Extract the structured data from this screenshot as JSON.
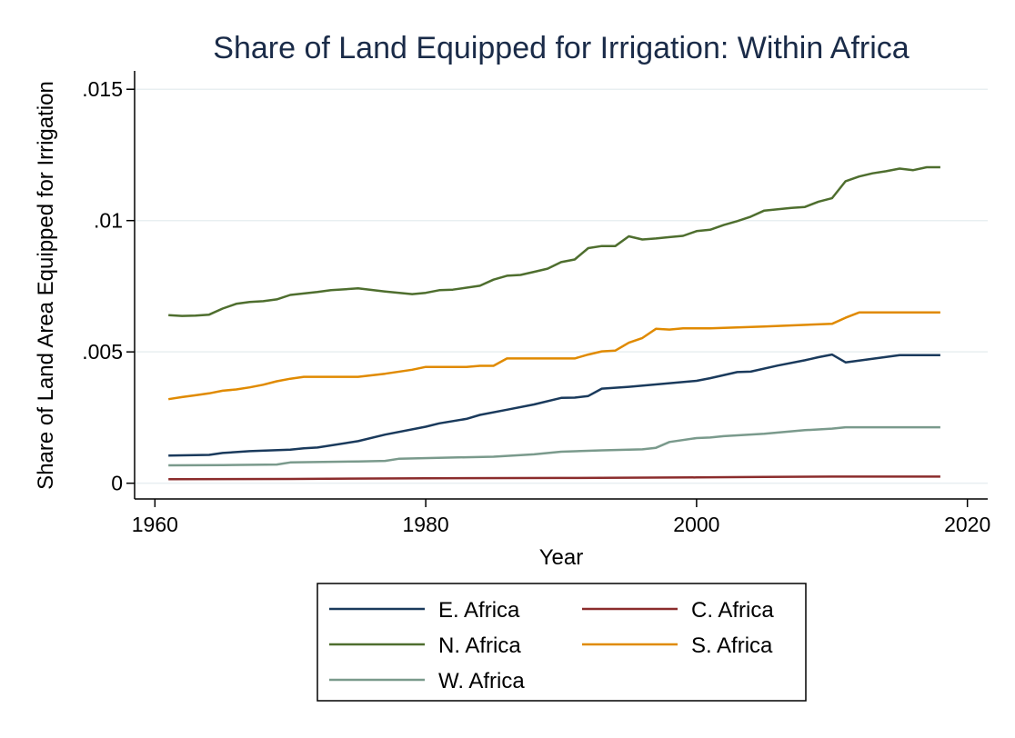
{
  "chart_data": {
    "type": "line",
    "title": "Share of Land Equipped for Irrigation: Within Africa",
    "xlabel": "Year",
    "ylabel": "Share of Land Area Equipped for Irrigation",
    "xlim": [
      1958.5,
      2021.5
    ],
    "ylim": [
      -0.0006,
      0.0157
    ],
    "xticks": [
      1960,
      1980,
      2000,
      2020
    ],
    "xtick_labels": [
      "1960",
      "1980",
      "2000",
      "2020"
    ],
    "yticks": [
      0,
      0.005,
      0.01,
      0.015
    ],
    "ytick_labels": [
      "0",
      ".005",
      ".01",
      ".015"
    ],
    "grid": true,
    "legend_position": "bottom",
    "series": [
      {
        "name": "E. Africa",
        "color": "#1a3a5c",
        "x": [
          1961,
          1964,
          1965,
          1967,
          1970,
          1971,
          1972,
          1975,
          1977,
          1980,
          1981,
          1983,
          1984,
          1986,
          1988,
          1990,
          1991,
          1992,
          1993,
          1995,
          2000,
          2001,
          2003,
          2004,
          2006,
          2008,
          2009,
          2010,
          2011,
          2015,
          2018
        ],
        "y": [
          0.00105,
          0.00108,
          0.00115,
          0.00122,
          0.00128,
          0.00133,
          0.00136,
          0.0016,
          0.00185,
          0.00215,
          0.00228,
          0.00245,
          0.0026,
          0.0028,
          0.003,
          0.00325,
          0.00326,
          0.00332,
          0.0036,
          0.00367,
          0.0039,
          0.004,
          0.00423,
          0.00425,
          0.00448,
          0.00468,
          0.0048,
          0.0049,
          0.0046,
          0.00488,
          0.00488
        ]
      },
      {
        "name": "C. Africa",
        "color": "#8b2c2c",
        "x": [
          1961,
          1970,
          1980,
          1990,
          2000,
          2005,
          2010,
          2018
        ],
        "y": [
          0.00015,
          0.00016,
          0.00019,
          0.0002,
          0.00022,
          0.00024,
          0.00025,
          0.00025
        ]
      },
      {
        "name": "N. Africa",
        "color": "#4e6e2e",
        "x": [
          1961,
          1962,
          1963,
          1964,
          1965,
          1966,
          1967,
          1968,
          1969,
          1970,
          1972,
          1973,
          1975,
          1977,
          1979,
          1980,
          1981,
          1982,
          1984,
          1985,
          1986,
          1987,
          1988,
          1989,
          1990,
          1991,
          1992,
          1993,
          1994,
          1995,
          1996,
          1997,
          1998,
          1999,
          2000,
          2001,
          2002,
          2003,
          2004,
          2005,
          2006,
          2007,
          2008,
          2009,
          2010,
          2011,
          2012,
          2013,
          2014,
          2015,
          2016,
          2017,
          2018
        ],
        "y": [
          0.0064,
          0.00637,
          0.00638,
          0.00642,
          0.00665,
          0.00683,
          0.0069,
          0.00693,
          0.007,
          0.00717,
          0.00728,
          0.00735,
          0.00742,
          0.0073,
          0.0072,
          0.00725,
          0.00735,
          0.00737,
          0.00752,
          0.00775,
          0.0079,
          0.00793,
          0.00805,
          0.00817,
          0.00842,
          0.00852,
          0.00895,
          0.00903,
          0.00903,
          0.0094,
          0.00928,
          0.00932,
          0.00937,
          0.00942,
          0.0096,
          0.00965,
          0.00983,
          0.00998,
          0.01015,
          0.01038,
          0.01043,
          0.01048,
          0.01052,
          0.01072,
          0.01085,
          0.0115,
          0.01168,
          0.0118,
          0.01188,
          0.01198,
          0.01192,
          0.01203,
          0.01203
        ]
      },
      {
        "name": "S. Africa",
        "color": "#e08a00",
        "x": [
          1961,
          1962,
          1963,
          1964,
          1965,
          1966,
          1967,
          1968,
          1969,
          1970,
          1971,
          1975,
          1977,
          1979,
          1980,
          1983,
          1984,
          1985,
          1986,
          1988,
          1991,
          1992,
          1993,
          1994,
          1995,
          1996,
          1997,
          1998,
          1999,
          2001,
          2005,
          2010,
          2011,
          2012,
          2018
        ],
        "y": [
          0.0032,
          0.00328,
          0.00335,
          0.00342,
          0.00352,
          0.00357,
          0.00365,
          0.00375,
          0.00388,
          0.00398,
          0.00405,
          0.00405,
          0.00417,
          0.00432,
          0.00443,
          0.00443,
          0.00447,
          0.00447,
          0.00475,
          0.00475,
          0.00475,
          0.0049,
          0.00502,
          0.00505,
          0.00535,
          0.00553,
          0.00588,
          0.00585,
          0.0059,
          0.0059,
          0.00597,
          0.00607,
          0.0063,
          0.0065,
          0.0065
        ]
      },
      {
        "name": "W. Africa",
        "color": "#7a9a8c",
        "x": [
          1961,
          1965,
          1969,
          1970,
          1975,
          1977,
          1978,
          1983,
          1985,
          1988,
          1990,
          1993,
          1996,
          1997,
          1998,
          2000,
          2001,
          2002,
          2005,
          2008,
          2010,
          2011,
          2018
        ],
        "y": [
          0.00068,
          0.00069,
          0.00071,
          0.00079,
          0.00083,
          0.00085,
          0.00093,
          0.00099,
          0.00101,
          0.0011,
          0.0012,
          0.00125,
          0.00129,
          0.00135,
          0.00157,
          0.00172,
          0.00174,
          0.00179,
          0.00188,
          0.00202,
          0.00208,
          0.00213,
          0.00213
        ]
      }
    ],
    "legend_order": [
      "E. Africa",
      "C. Africa",
      "N. Africa",
      "S. Africa",
      "W. Africa"
    ]
  }
}
